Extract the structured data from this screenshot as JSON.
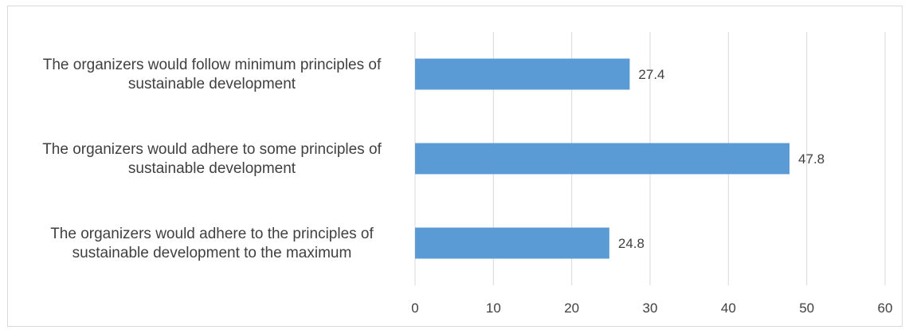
{
  "chart_data": {
    "type": "bar",
    "orientation": "horizontal",
    "categories": [
      [
        "The organizers would follow minimum principles of",
        "sustainable development"
      ],
      [
        "The organizers would adhere to some principles of",
        "sustainable development"
      ],
      [
        "The organizers would adhere to the principles of",
        "sustainable development to the maximum"
      ]
    ],
    "values": [
      27.4,
      47.8,
      24.8
    ],
    "value_labels": [
      "27.4",
      "47.8",
      "24.8"
    ],
    "xlim": [
      0,
      60
    ],
    "x_ticks": [
      "0",
      "10",
      "20",
      "30",
      "40",
      "50",
      "60"
    ],
    "title": "",
    "xlabel": "",
    "ylabel": "",
    "grid": true,
    "legend": "none",
    "colors": {
      "bar": "#5b9bd5",
      "grid": "#d9d9d9",
      "text": "#404040",
      "border": "#d9d9d9"
    }
  }
}
